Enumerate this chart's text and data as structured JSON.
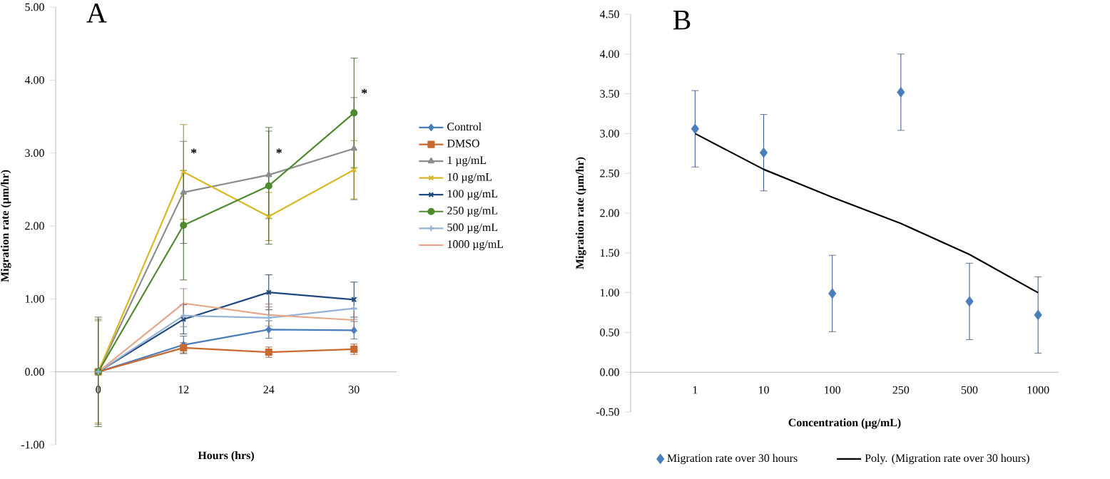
{
  "chart_data": [
    {
      "type": "line",
      "title": "A",
      "xlabel": "Hours (hrs)",
      "ylabel": "Migration rate (µm/hr)",
      "categories": [
        "0",
        "12",
        "24",
        "30"
      ],
      "ylim": [
        -1,
        5
      ],
      "yticks": [
        {
          "value": -1,
          "label": "-1.00"
        },
        {
          "value": 0,
          "label": "0.00"
        },
        {
          "value": 1,
          "label": "1.00"
        },
        {
          "value": 2,
          "label": "2.00"
        },
        {
          "value": 3,
          "label": "3.00"
        },
        {
          "value": 4,
          "label": "4.00"
        },
        {
          "value": 5,
          "label": "5.00"
        }
      ],
      "legend": "right",
      "grid": false,
      "series": [
        {
          "name": "Control",
          "color": "#4a7ebb",
          "marker": "diamond",
          "values": [
            0,
            0.37,
            0.58,
            0.57
          ],
          "errors": [
            null,
            0.12,
            0.12,
            0.12
          ]
        },
        {
          "name": "DMSO",
          "color": "#c8692f",
          "marker": "square",
          "values": [
            0,
            0.33,
            0.27,
            0.31
          ],
          "errors": [
            null,
            0.07,
            0.07,
            0.07
          ]
        },
        {
          "name": "1 µg/mL",
          "color": "#8c8c8c",
          "marker": "triangle",
          "values": [
            0,
            2.46,
            2.7,
            3.06
          ],
          "errors": [
            0.72,
            0.7,
            0.6,
            0.7
          ]
        },
        {
          "name": "10 µg/mL",
          "color": "#d8b825",
          "marker": "cross",
          "values": [
            0,
            2.74,
            2.13,
            2.77
          ],
          "errors": [
            0.7,
            0.65,
            0.33,
            0.4
          ]
        },
        {
          "name": "100 µg/mL",
          "color": "#1f497d",
          "marker": "cross",
          "values": [
            0,
            0.72,
            1.09,
            0.99
          ],
          "errors": [
            null,
            0.2,
            0.24,
            0.24
          ]
        },
        {
          "name": "250 µg/mL",
          "color": "#4f8a2f",
          "marker": "circle",
          "values": [
            0,
            2.01,
            2.55,
            3.55
          ],
          "errors": [
            0.75,
            0.75,
            0.8,
            0.75
          ]
        },
        {
          "name": "500 µg/mL",
          "color": "#95b3d7",
          "marker": "plus",
          "values": [
            0,
            0.77,
            0.74,
            0.87
          ],
          "errors": [
            null,
            0.15,
            0.15,
            0.15
          ]
        },
        {
          "name": "1000 µg/mL",
          "color": "#e6a88a",
          "marker": "none",
          "values": [
            0,
            0.94,
            0.78,
            0.71
          ],
          "errors": [
            null,
            0.2,
            0.15,
            0.15
          ]
        }
      ],
      "annotations": [
        {
          "text": "*",
          "x": "12",
          "y": 2.94
        },
        {
          "text": "*",
          "x": "24",
          "y": 2.94
        },
        {
          "text": "*",
          "x": "30",
          "y": 3.76
        }
      ]
    },
    {
      "type": "scatter",
      "title": "B",
      "xlabel": "Concentration (µg/mL)",
      "ylabel": "Migration rate (µm/hr)",
      "categories": [
        "1",
        "10",
        "100",
        "250",
        "500",
        "1000"
      ],
      "ylim": [
        -0.5,
        4.5
      ],
      "yticks": [
        {
          "value": -0.5,
          "label": "-0.50"
        },
        {
          "value": 0,
          "label": "0.00"
        },
        {
          "value": 0.5,
          "label": "0.50"
        },
        {
          "value": 1,
          "label": "1.00"
        },
        {
          "value": 1.5,
          "label": "1.50"
        },
        {
          "value": 2,
          "label": "2.00"
        },
        {
          "value": 2.5,
          "label": "2.50"
        },
        {
          "value": 3,
          "label": "3.00"
        },
        {
          "value": 3.5,
          "label": "3.50"
        },
        {
          "value": 4,
          "label": "4.00"
        },
        {
          "value": 4.5,
          "label": "4.50"
        }
      ],
      "legend": "bottom",
      "grid": false,
      "series": [
        {
          "name": "Migration rate over 30 hours",
          "color": "#4a7ebb",
          "marker": "diamond",
          "values": [
            3.06,
            2.76,
            0.99,
            3.52,
            0.89,
            0.72
          ],
          "errors": [
            0.48,
            0.48,
            0.48,
            0.48,
            0.48,
            0.48
          ]
        },
        {
          "name": "Poly. (Migration rate over 30 hours)",
          "type": "line",
          "color": "#000000",
          "marker": "none",
          "values": [
            3.0,
            2.55,
            2.2,
            1.87,
            1.48,
            1.0
          ]
        }
      ]
    }
  ]
}
